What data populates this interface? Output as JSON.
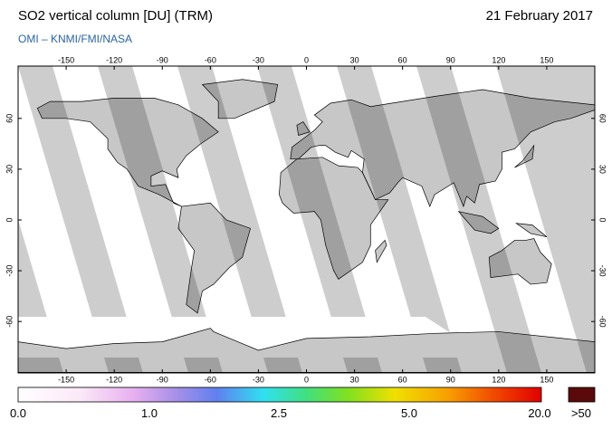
{
  "header": {
    "title": "SO2 vertical column [DU] (TRM)",
    "date": "21 February 2017",
    "credit": "OMI  –  KNMI/FMI/NASA"
  },
  "map": {
    "lon_ticks": [
      -150,
      -120,
      -90,
      -60,
      -30,
      0,
      30,
      60,
      90,
      120,
      150
    ],
    "lat_ticks": [
      60,
      30,
      0,
      -30,
      -60
    ]
  },
  "colorbar": {
    "labels": [
      "0.0",
      "1.0",
      "2.5",
      "5.0",
      "20.0"
    ],
    "overflow_label": ">50"
  }
}
